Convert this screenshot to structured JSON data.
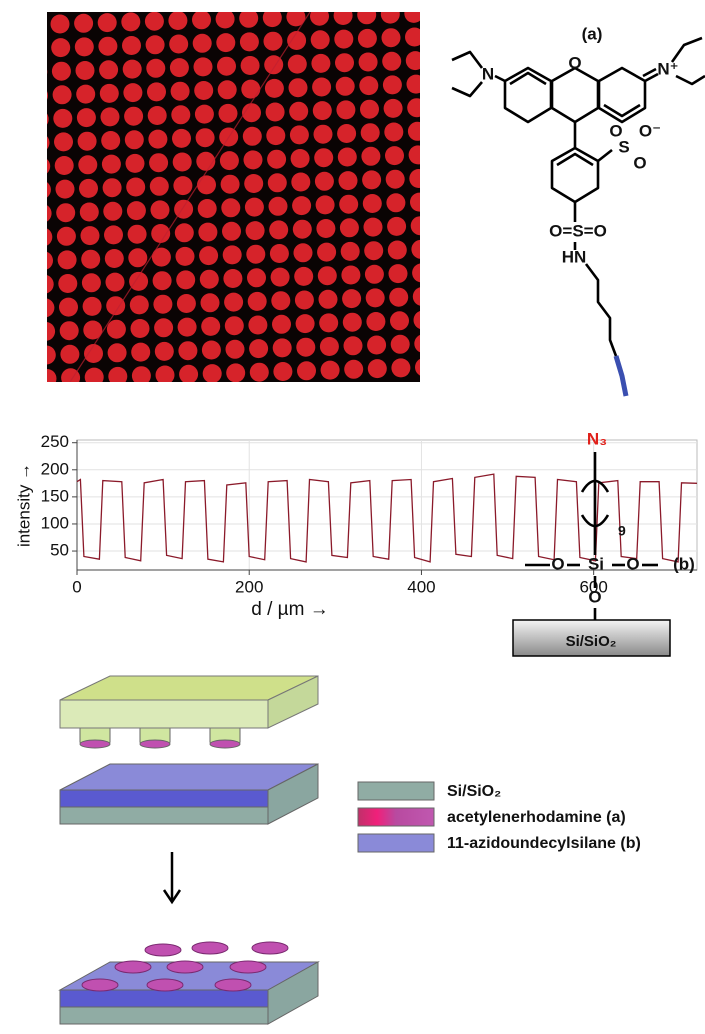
{
  "chart_data": {
    "type": "line",
    "xlabel": "d / µm  →",
    "ylabel": "intensity →",
    "x": [
      0,
      4,
      8,
      26,
      30,
      52,
      56,
      74,
      78,
      100,
      104,
      122,
      126,
      148,
      152,
      170,
      174,
      196,
      200,
      218,
      222,
      244,
      248,
      266,
      270,
      292,
      296,
      314,
      318,
      340,
      344,
      362,
      366,
      388,
      392,
      410,
      414,
      436,
      440,
      458,
      462,
      484,
      488,
      506,
      510,
      532,
      536,
      554,
      558,
      580,
      584,
      602,
      606,
      628,
      632,
      650,
      654,
      676,
      680,
      698,
      702,
      720
    ],
    "series": [
      {
        "color": "#8b1a2a",
        "values": [
          178,
          182,
          40,
          35,
          180,
          178,
          38,
          32,
          176,
          182,
          42,
          36,
          178,
          180,
          35,
          30,
          172,
          176,
          40,
          34,
          178,
          180,
          36,
          30,
          182,
          178,
          42,
          38,
          176,
          180,
          40,
          35,
          180,
          182,
          38,
          30,
          178,
          184,
          44,
          40,
          186,
          192,
          42,
          36,
          188,
          186,
          40,
          34,
          182,
          178,
          38,
          32,
          176,
          180,
          40,
          36,
          178,
          178,
          36,
          30,
          176,
          175
        ]
      }
    ],
    "xlim": [
      0,
      720
    ],
    "xticks": [
      0,
      200,
      400,
      600
    ],
    "ylim": [
      15,
      255
    ],
    "yticks": [
      50,
      100,
      150,
      200,
      250
    ],
    "grid": true
  },
  "structure_a": {
    "label": "(a)",
    "atoms": [
      "N",
      "O",
      "N⁺",
      "O",
      "S",
      "O⁻",
      "O",
      "O=S=O",
      "HN"
    ]
  },
  "structure_b": {
    "label": "(b)",
    "azide": "N₃",
    "repeat": "9",
    "atoms": [
      "O",
      "Si",
      "O",
      "O"
    ],
    "substrate": "Si/SiO₂"
  },
  "legend": {
    "items": [
      "Si/SiO₂",
      "acetylenerhodamine (a)",
      "11-azidoundecylsilane (b)"
    ]
  }
}
